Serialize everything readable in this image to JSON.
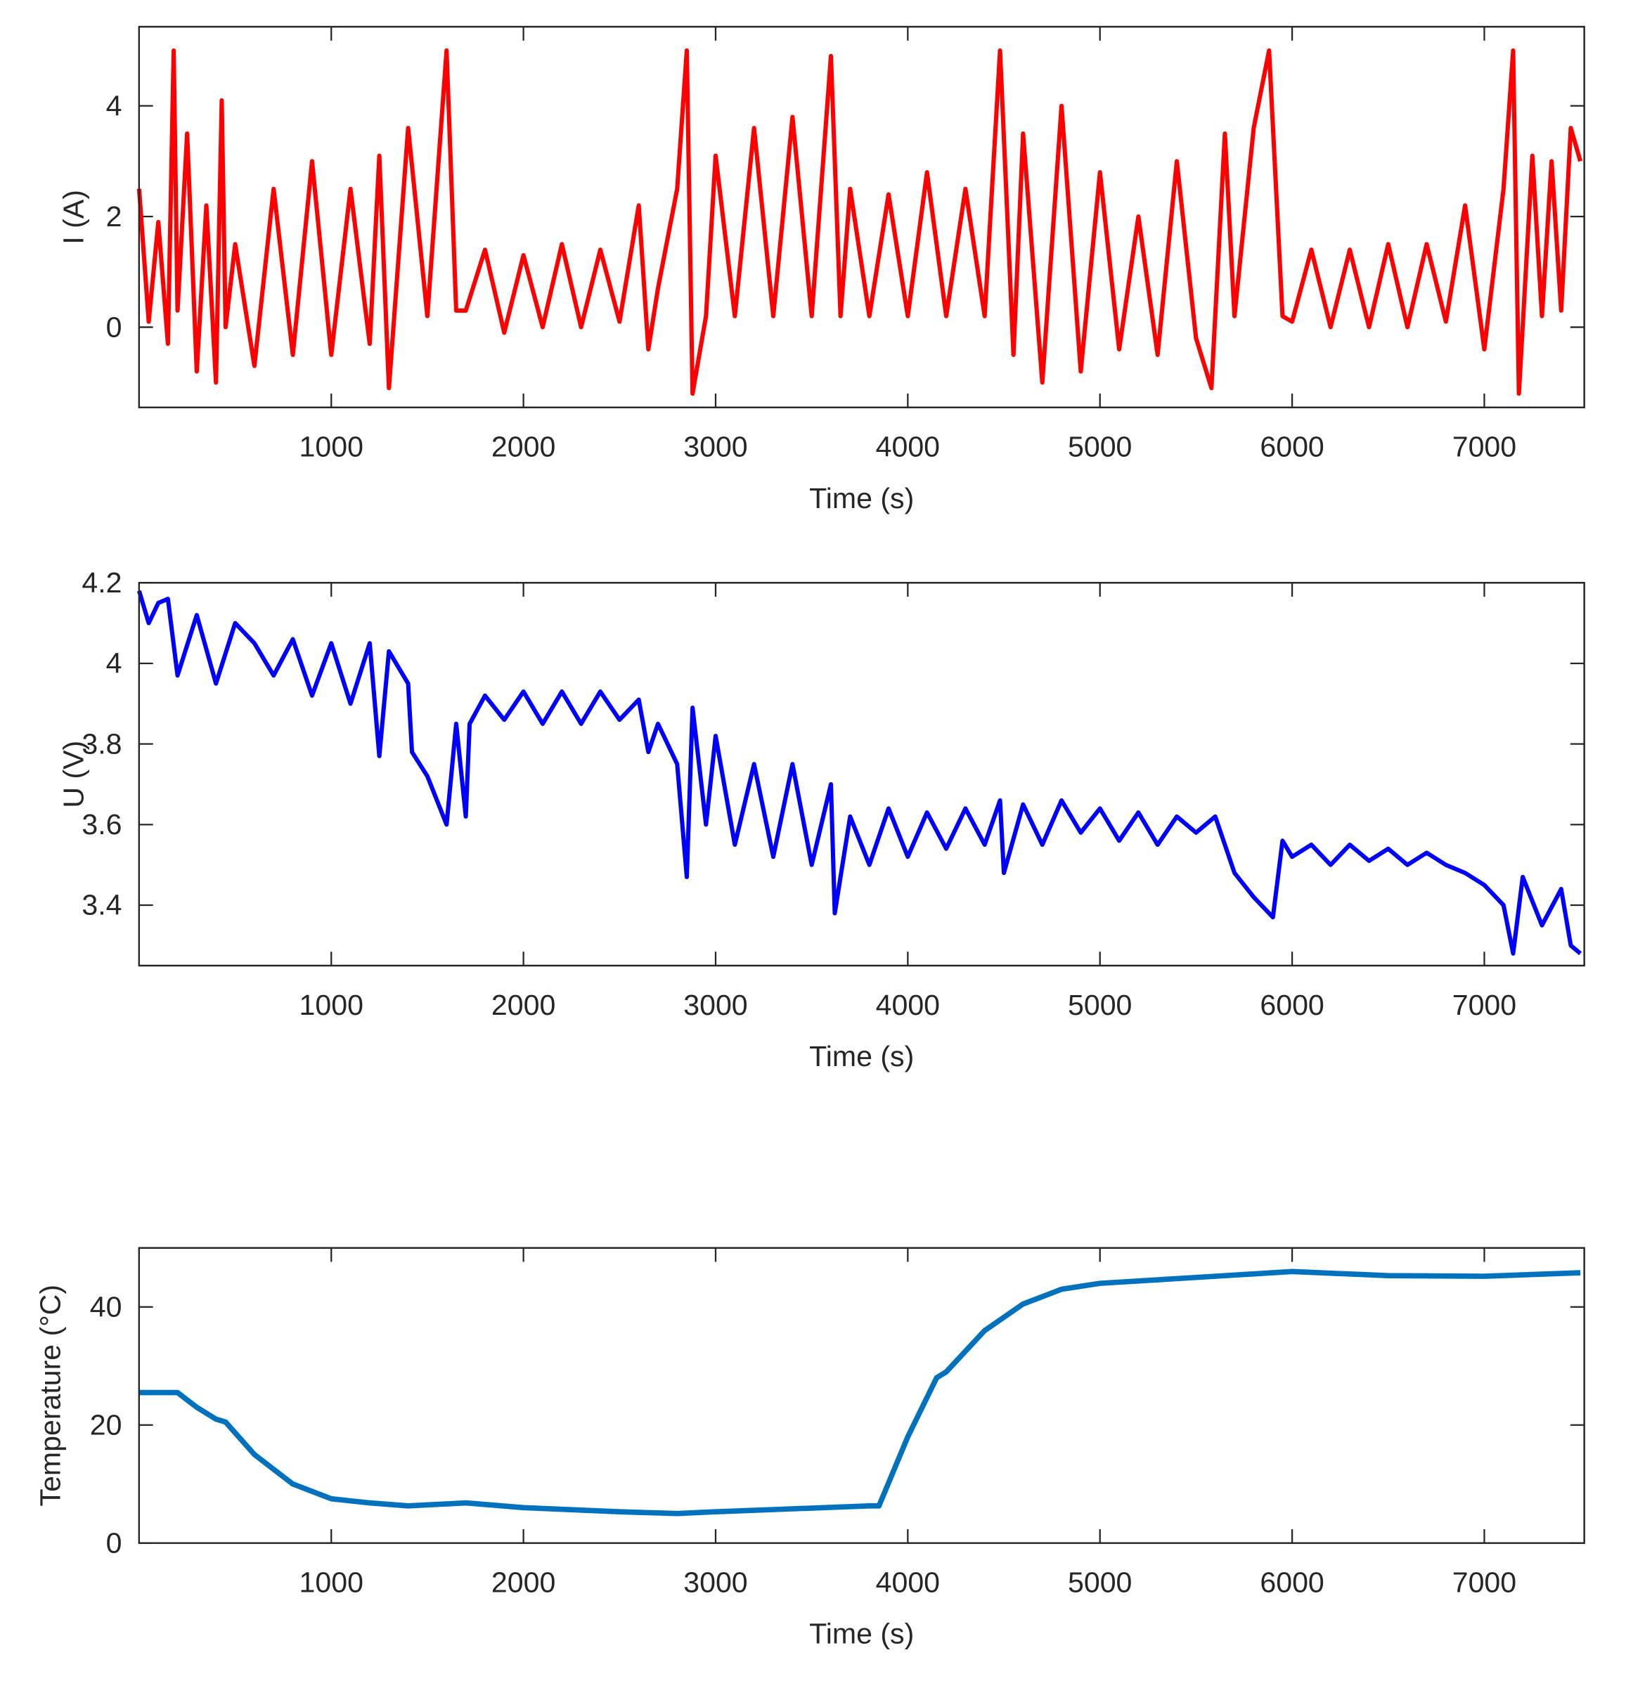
{
  "chart_data": [
    {
      "type": "line",
      "ylabel": "I (A)",
      "xlabel": "Time (s)",
      "color": "#ff0000",
      "xlim": [
        0,
        7520
      ],
      "xticks": [
        1000,
        2000,
        3000,
        4000,
        5000,
        6000,
        7000
      ],
      "ylim": [
        -1.45,
        5.43
      ],
      "yticks": [
        0,
        2,
        4
      ],
      "x": [
        0,
        50,
        100,
        150,
        180,
        200,
        250,
        300,
        350,
        400,
        430,
        450,
        500,
        600,
        700,
        800,
        900,
        1000,
        1100,
        1200,
        1250,
        1300,
        1400,
        1500,
        1600,
        1650,
        1700,
        1800,
        1900,
        2000,
        2100,
        2200,
        2300,
        2400,
        2500,
        2600,
        2650,
        2700,
        2800,
        2850,
        2880,
        2950,
        3000,
        3100,
        3200,
        3300,
        3400,
        3500,
        3600,
        3650,
        3700,
        3800,
        3900,
        4000,
        4100,
        4200,
        4300,
        4400,
        4480,
        4550,
        4600,
        4700,
        4800,
        4900,
        5000,
        5100,
        5200,
        5300,
        5400,
        5500,
        5580,
        5650,
        5700,
        5800,
        5880,
        5950,
        6000,
        6100,
        6200,
        6300,
        6400,
        6500,
        6600,
        6700,
        6800,
        6900,
        7000,
        7100,
        7150,
        7180,
        7250,
        7300,
        7350,
        7400,
        7450,
        7500
      ],
      "values": [
        2.5,
        0.1,
        1.9,
        -0.3,
        5.0,
        0.3,
        3.5,
        -0.8,
        2.2,
        -1.0,
        4.1,
        0.0,
        1.5,
        -0.7,
        2.5,
        -0.5,
        3.0,
        -0.5,
        2.5,
        -0.3,
        3.1,
        -1.1,
        3.6,
        0.2,
        5.0,
        0.3,
        0.3,
        1.4,
        -0.1,
        1.3,
        0.0,
        1.5,
        0.0,
        1.4,
        0.1,
        2.2,
        -0.4,
        0.7,
        2.5,
        5.0,
        -1.2,
        0.2,
        3.1,
        0.2,
        3.6,
        0.2,
        3.8,
        0.2,
        4.9,
        0.2,
        2.5,
        0.2,
        2.4,
        0.2,
        2.8,
        0.2,
        2.5,
        0.2,
        5.0,
        -0.5,
        3.5,
        -1.0,
        4.0,
        -0.8,
        2.8,
        -0.4,
        2.0,
        -0.5,
        3.0,
        -0.2,
        -1.1,
        3.5,
        0.2,
        3.6,
        5.0,
        0.2,
        0.1,
        1.4,
        0.0,
        1.4,
        0.0,
        1.5,
        0.0,
        1.5,
        0.1,
        2.2,
        -0.4,
        2.5,
        5.0,
        -1.2,
        3.1,
        0.2,
        3.0,
        0.3,
        3.6,
        3.0
      ]
    },
    {
      "type": "line",
      "ylabel": "U (V)",
      "xlabel": "Time (s)",
      "color": "#0000ff",
      "xlim": [
        0,
        7520
      ],
      "xticks": [
        1000,
        2000,
        3000,
        4000,
        5000,
        6000,
        7000
      ],
      "ylim": [
        3.25,
        4.2
      ],
      "yticks": [
        3.4,
        3.6,
        3.8,
        4,
        4.2
      ],
      "x": [
        0,
        50,
        100,
        150,
        200,
        300,
        400,
        500,
        600,
        700,
        800,
        900,
        1000,
        1100,
        1200,
        1250,
        1300,
        1400,
        1420,
        1500,
        1600,
        1650,
        1700,
        1720,
        1800,
        1900,
        2000,
        2100,
        2200,
        2300,
        2400,
        2500,
        2600,
        2650,
        2700,
        2800,
        2850,
        2880,
        2950,
        3000,
        3100,
        3200,
        3300,
        3400,
        3500,
        3600,
        3620,
        3700,
        3800,
        3900,
        4000,
        4100,
        4200,
        4300,
        4400,
        4480,
        4500,
        4600,
        4700,
        4800,
        4900,
        5000,
        5100,
        5200,
        5300,
        5400,
        5500,
        5600,
        5700,
        5800,
        5900,
        5950,
        6000,
        6100,
        6200,
        6300,
        6400,
        6500,
        6600,
        6700,
        6800,
        6900,
        7000,
        7100,
        7150,
        7200,
        7300,
        7400,
        7450,
        7500
      ],
      "values": [
        4.18,
        4.1,
        4.15,
        4.16,
        3.97,
        4.12,
        3.95,
        4.1,
        4.05,
        3.97,
        4.06,
        3.92,
        4.05,
        3.9,
        4.05,
        3.77,
        4.03,
        3.95,
        3.78,
        3.72,
        3.6,
        3.85,
        3.62,
        3.85,
        3.92,
        3.86,
        3.93,
        3.85,
        3.93,
        3.85,
        3.93,
        3.86,
        3.91,
        3.78,
        3.85,
        3.75,
        3.47,
        3.89,
        3.6,
        3.82,
        3.55,
        3.75,
        3.52,
        3.75,
        3.5,
        3.7,
        3.38,
        3.62,
        3.5,
        3.64,
        3.52,
        3.63,
        3.54,
        3.64,
        3.55,
        3.66,
        3.48,
        3.65,
        3.55,
        3.66,
        3.58,
        3.64,
        3.56,
        3.63,
        3.55,
        3.62,
        3.58,
        3.62,
        3.48,
        3.42,
        3.37,
        3.56,
        3.52,
        3.55,
        3.5,
        3.55,
        3.51,
        3.54,
        3.5,
        3.53,
        3.5,
        3.48,
        3.45,
        3.4,
        3.28,
        3.47,
        3.35,
        3.44,
        3.3,
        3.28
      ]
    },
    {
      "type": "line",
      "ylabel": "Temperature (°C)",
      "xlabel": "Time (s)",
      "color": "#0072bd",
      "xlim": [
        0,
        7520
      ],
      "xticks": [
        1000,
        2000,
        3000,
        4000,
        5000,
        6000,
        7000
      ],
      "ylim": [
        0,
        50
      ],
      "yticks": [
        0,
        20,
        40
      ],
      "x": [
        0,
        200,
        300,
        400,
        450,
        600,
        800,
        1000,
        1200,
        1400,
        1700,
        2000,
        2500,
        2800,
        3000,
        3400,
        3800,
        3850,
        4000,
        4150,
        4200,
        4400,
        4600,
        4800,
        5000,
        5500,
        6000,
        6500,
        7000,
        7500
      ],
      "values": [
        25.5,
        25.5,
        23,
        21,
        20.5,
        15,
        10,
        7.5,
        6.8,
        6.3,
        6.8,
        6.0,
        5.3,
        5.0,
        5.3,
        5.8,
        6.3,
        6.3,
        18,
        28,
        29,
        36,
        40.5,
        43,
        44,
        45,
        46,
        45.3,
        45.2,
        45.8
      ]
    }
  ]
}
